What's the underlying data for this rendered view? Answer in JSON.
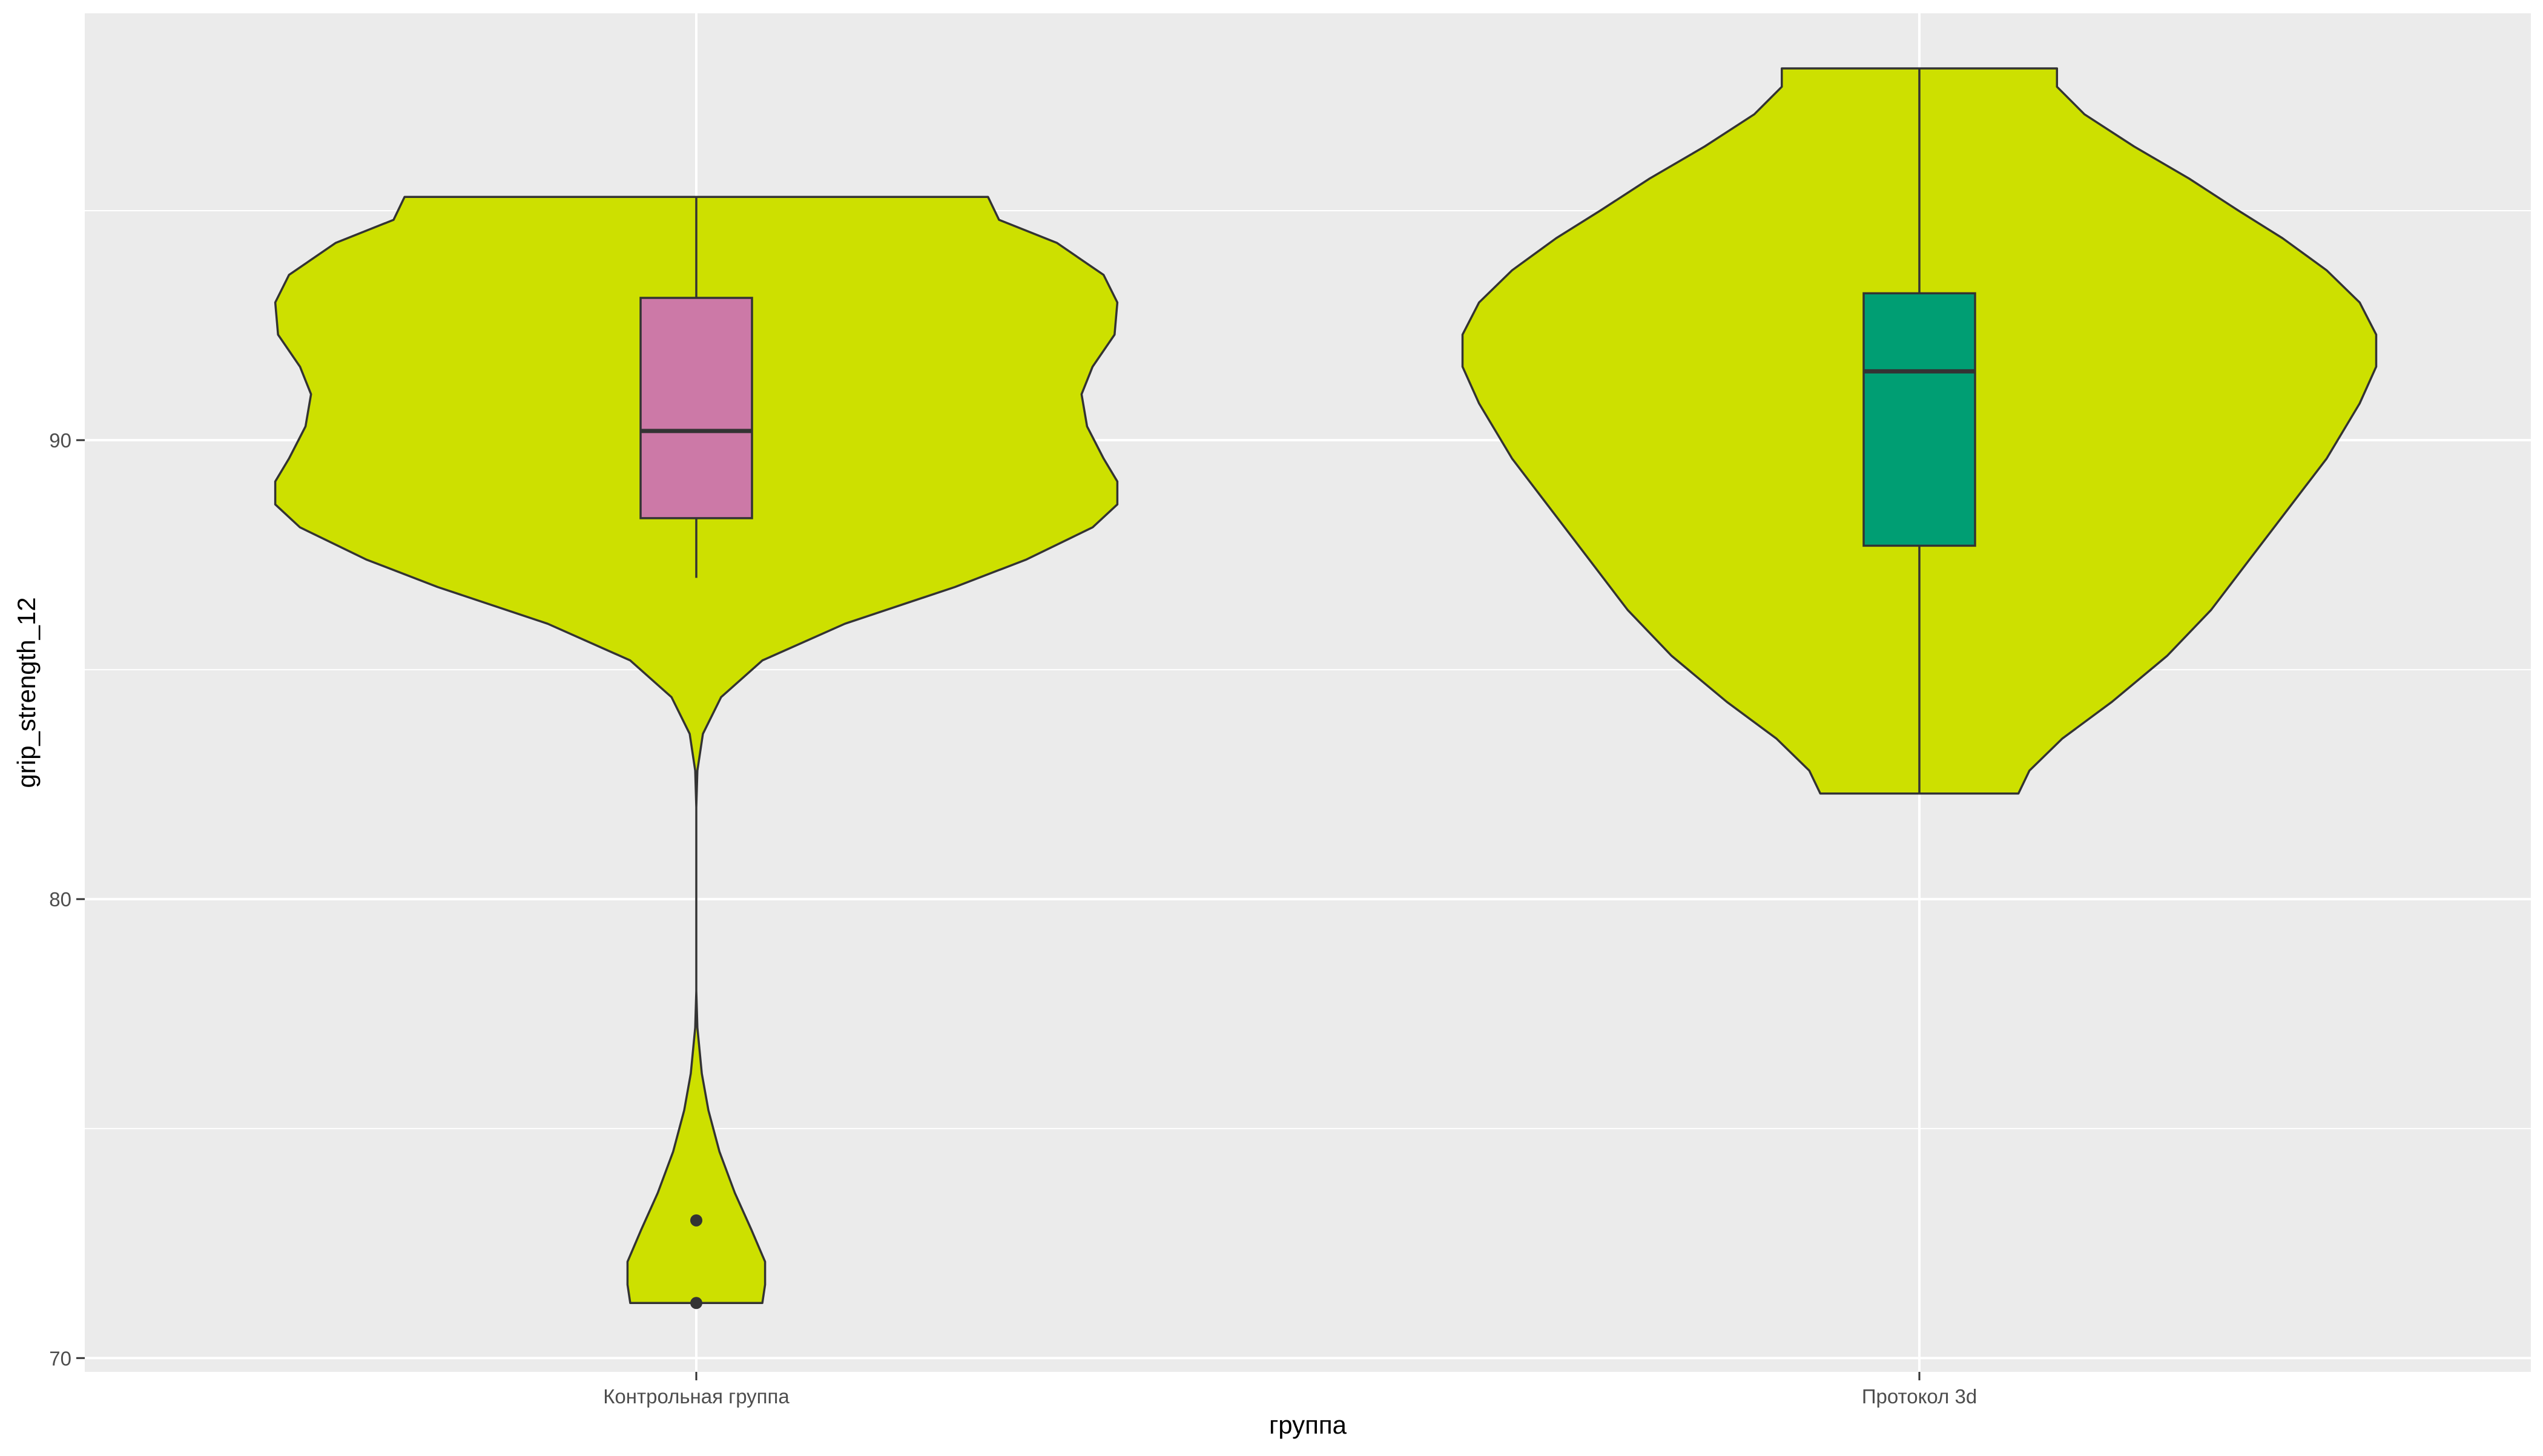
{
  "chart_data": {
    "type": "violin",
    "xlabel": "группа",
    "ylabel": "grip_strength_12",
    "categories": [
      "Контрольная группа",
      "Протокол 3d"
    ],
    "ylim": [
      69.7,
      99.3
    ],
    "yticks": [
      70,
      80,
      90
    ],
    "grid": true,
    "violin_fill": "#cde000",
    "groups": [
      {
        "name": "Контрольная группа",
        "box_color": "#cc79a7",
        "box": {
          "lower_whisker": 87.0,
          "q1": 88.3,
          "median": 90.2,
          "q3": 93.1,
          "upper_whisker": 95.3
        },
        "outliers": [
          73.0,
          71.2
        ],
        "range": [
          71.2,
          95.3
        ],
        "density": [
          [
            71.2,
            0.12
          ],
          [
            71.6,
            0.125
          ],
          [
            72.1,
            0.125
          ],
          [
            72.8,
            0.1
          ],
          [
            73.6,
            0.07
          ],
          [
            74.5,
            0.042
          ],
          [
            75.4,
            0.022
          ],
          [
            76.2,
            0.01
          ],
          [
            77.2,
            0.002
          ],
          [
            78.0,
            0.0
          ],
          [
            79.0,
            0.0
          ],
          [
            80.0,
            0.0
          ],
          [
            81.0,
            0.0
          ],
          [
            82.0,
            0.0
          ],
          [
            82.8,
            0.002
          ],
          [
            83.6,
            0.012
          ],
          [
            84.4,
            0.045
          ],
          [
            85.2,
            0.12
          ],
          [
            86.0,
            0.27
          ],
          [
            86.8,
            0.47
          ],
          [
            87.4,
            0.6
          ],
          [
            88.1,
            0.72
          ],
          [
            88.6,
            0.765
          ],
          [
            89.1,
            0.765
          ],
          [
            89.6,
            0.74
          ],
          [
            90.3,
            0.71
          ],
          [
            91.0,
            0.7
          ],
          [
            91.6,
            0.72
          ],
          [
            92.3,
            0.76
          ],
          [
            93.0,
            0.765
          ],
          [
            93.6,
            0.74
          ],
          [
            94.3,
            0.655
          ],
          [
            94.8,
            0.55
          ],
          [
            95.3,
            0.53
          ]
        ]
      },
      {
        "name": "Протокол 3d",
        "box_color": "#009e73",
        "box": {
          "lower_whisker": 82.3,
          "q1": 87.7,
          "median": 91.5,
          "q3": 93.2,
          "upper_whisker": 98.1
        },
        "outliers": [],
        "range": [
          82.3,
          98.1
        ],
        "density": [
          [
            82.3,
            0.18
          ],
          [
            82.8,
            0.2
          ],
          [
            83.5,
            0.26
          ],
          [
            84.3,
            0.35
          ],
          [
            85.3,
            0.45
          ],
          [
            86.3,
            0.53
          ],
          [
            87.4,
            0.6
          ],
          [
            88.5,
            0.67
          ],
          [
            89.6,
            0.74
          ],
          [
            90.8,
            0.8
          ],
          [
            91.6,
            0.83
          ],
          [
            92.3,
            0.83
          ],
          [
            93.0,
            0.8
          ],
          [
            93.7,
            0.74
          ],
          [
            94.4,
            0.66
          ],
          [
            95.0,
            0.58
          ],
          [
            95.7,
            0.49
          ],
          [
            96.4,
            0.39
          ],
          [
            97.1,
            0.3
          ],
          [
            97.7,
            0.25
          ],
          [
            98.1,
            0.25
          ]
        ]
      }
    ]
  }
}
